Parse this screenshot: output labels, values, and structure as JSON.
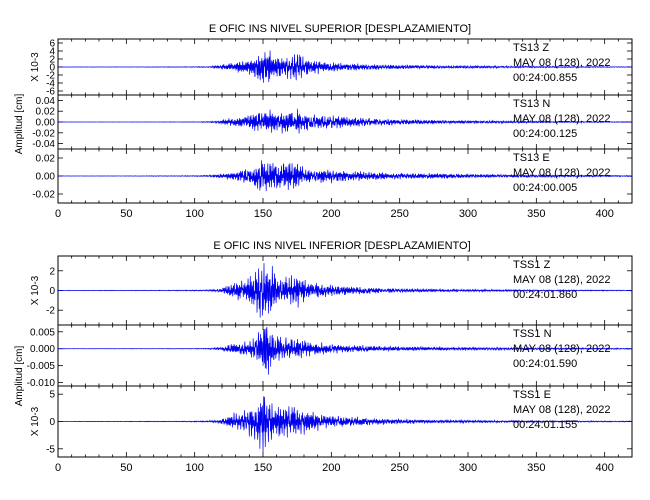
{
  "chart_data": [
    {
      "type": "line",
      "title": "E OFIC INS NIVEL SUPERIOR [DESPLAZAMIENTO]",
      "xlabel": "",
      "xlim": [
        0,
        420
      ],
      "x_ticks": [
        "0",
        "50",
        "100",
        "150",
        "200",
        "250",
        "300",
        "350",
        "400"
      ],
      "shared_ylabel": "Amplitud [cm]",
      "panels": [
        {
          "name": "TS13 Z",
          "station": "TS13",
          "component": "Z",
          "date": "MAY 08 (128), 2022",
          "time": "00:24:00.855",
          "ylabel": "X 10-3",
          "ylim": [
            -7,
            7
          ],
          "y_ticks": [
            6,
            4,
            2,
            0,
            -2,
            -4,
            -6
          ],
          "y_tick_labels": [
            "6",
            "4",
            "2",
            "0",
            "-2",
            "-4",
            "-6"
          ],
          "x": [
            0,
            20,
            40,
            60,
            80,
            100,
            110,
            115,
            120,
            125,
            130,
            135,
            140,
            145,
            150,
            152,
            155,
            158,
            160,
            165,
            170,
            175,
            180,
            185,
            190,
            195,
            200,
            205,
            210,
            220,
            230,
            240,
            250,
            260,
            270,
            280,
            290,
            300,
            310,
            320,
            330,
            340,
            350,
            360,
            370,
            380,
            390,
            400,
            410,
            420
          ],
          "envelope": [
            0.04,
            0.05,
            0.05,
            0.06,
            0.08,
            0.1,
            0.15,
            0.3,
            0.6,
            1.0,
            1.3,
            1.6,
            1.8,
            3.0,
            4.5,
            6.2,
            5.0,
            3.5,
            2.8,
            2.7,
            3.0,
            3.6,
            2.6,
            1.8,
            1.6,
            1.4,
            1.3,
            1.1,
            1.0,
            0.85,
            0.7,
            0.6,
            0.55,
            0.5,
            0.45,
            0.4,
            0.35,
            0.32,
            0.3,
            0.28,
            0.25,
            0.22,
            0.2,
            0.18,
            0.17,
            0.16,
            0.14,
            0.12,
            0.1,
            0.08
          ]
        },
        {
          "name": "TS13 N",
          "station": "TS13",
          "component": "N",
          "date": "MAY 08 (128), 2022",
          "time": "00:24:00.125",
          "ylabel": "Amplitud [cm]",
          "ylim": [
            -0.05,
            0.05
          ],
          "y_ticks": [
            0.04,
            0.02,
            0.0,
            -0.02,
            -0.04
          ],
          "y_tick_labels": [
            "0.04",
            "0.02",
            "0.00",
            "-0.02",
            "-0.04"
          ],
          "x": [
            0,
            20,
            40,
            60,
            80,
            100,
            110,
            115,
            120,
            125,
            130,
            135,
            140,
            145,
            150,
            152,
            155,
            158,
            160,
            165,
            170,
            175,
            180,
            185,
            190,
            195,
            200,
            205,
            210,
            220,
            230,
            240,
            250,
            260,
            270,
            280,
            290,
            300,
            310,
            320,
            330,
            340,
            350,
            360,
            370,
            380,
            390,
            400,
            410,
            420
          ],
          "envelope": [
            0.0002,
            0.0002,
            0.0002,
            0.0003,
            0.0004,
            0.0005,
            0.001,
            0.002,
            0.004,
            0.006,
            0.009,
            0.011,
            0.013,
            0.018,
            0.022,
            0.028,
            0.022,
            0.019,
            0.018,
            0.02,
            0.021,
            0.022,
            0.018,
            0.015,
            0.014,
            0.013,
            0.013,
            0.012,
            0.011,
            0.009,
            0.0075,
            0.0062,
            0.0055,
            0.0048,
            0.0042,
            0.0036,
            0.003,
            0.0028,
            0.0025,
            0.0022,
            0.002,
            0.0018,
            0.0016,
            0.0014,
            0.0013,
            0.0012,
            0.001,
            0.0009,
            0.0008,
            0.0007
          ]
        },
        {
          "name": "TS13 E",
          "station": "TS13",
          "component": "E",
          "date": "MAY 08 (128), 2022",
          "time": "00:24:00.005",
          "ylabel": "",
          "ylim": [
            -0.03,
            0.03
          ],
          "y_ticks": [
            0.02,
            0.0,
            -0.02
          ],
          "y_tick_labels": [
            "0.02",
            "0.00",
            "-0.02"
          ],
          "x": [
            0,
            20,
            40,
            60,
            80,
            100,
            110,
            115,
            120,
            125,
            130,
            135,
            140,
            145,
            150,
            152,
            155,
            158,
            160,
            165,
            170,
            175,
            180,
            185,
            190,
            195,
            200,
            205,
            210,
            220,
            230,
            240,
            250,
            260,
            270,
            280,
            290,
            300,
            310,
            320,
            330,
            340,
            350,
            360,
            370,
            380,
            390,
            400,
            410,
            420
          ],
          "envelope": [
            0.0002,
            0.0002,
            0.0002,
            0.0003,
            0.0004,
            0.0005,
            0.0009,
            0.0015,
            0.0025,
            0.004,
            0.006,
            0.008,
            0.01,
            0.015,
            0.019,
            0.02,
            0.018,
            0.016,
            0.015,
            0.016,
            0.017,
            0.016,
            0.01,
            0.008,
            0.007,
            0.009,
            0.008,
            0.0065,
            0.006,
            0.005,
            0.0045,
            0.004,
            0.0035,
            0.0033,
            0.003,
            0.0028,
            0.0025,
            0.0023,
            0.002,
            0.0018,
            0.0016,
            0.0015,
            0.0014,
            0.0012,
            0.0011,
            0.001,
            0.0009,
            0.0008,
            0.0007,
            0.0006
          ]
        }
      ]
    },
    {
      "type": "line",
      "title": "E OFIC INS NIVEL INFERIOR [DESPLAZAMIENTO]",
      "xlabel": "",
      "xlim": [
        0,
        420
      ],
      "x_ticks": [
        "0",
        "50",
        "100",
        "150",
        "200",
        "250",
        "300",
        "350",
        "400"
      ],
      "shared_ylabel": "Amplitud [cm]",
      "panels": [
        {
          "name": "TSS1 Z",
          "station": "TSS1",
          "component": "Z",
          "date": "MAY 08 (128), 2022",
          "time": "00:24:01.860",
          "ylabel": "X 10-3",
          "ylim": [
            -3.5,
            3.5
          ],
          "y_ticks": [
            2,
            0,
            -2
          ],
          "y_tick_labels": [
            "2",
            "0",
            "-2"
          ],
          "x": [
            0,
            20,
            40,
            60,
            80,
            100,
            110,
            115,
            120,
            125,
            130,
            135,
            140,
            145,
            150,
            152,
            155,
            158,
            160,
            165,
            170,
            175,
            180,
            185,
            190,
            195,
            200,
            205,
            210,
            220,
            230,
            240,
            250,
            260,
            270,
            280,
            290,
            300,
            310,
            320,
            330,
            340,
            350,
            360,
            370,
            380,
            390,
            400,
            410,
            420
          ],
          "envelope": [
            0.02,
            0.025,
            0.03,
            0.03,
            0.04,
            0.05,
            0.08,
            0.12,
            0.25,
            0.6,
            0.9,
            1.1,
            1.3,
            2.2,
            3.0,
            3.3,
            2.6,
            2.1,
            1.8,
            1.6,
            1.5,
            1.7,
            1.2,
            0.9,
            0.8,
            0.7,
            0.6,
            0.55,
            0.5,
            0.4,
            0.32,
            0.26,
            0.22,
            0.2,
            0.17,
            0.15,
            0.13,
            0.12,
            0.11,
            0.1,
            0.09,
            0.08,
            0.075,
            0.07,
            0.065,
            0.06,
            0.055,
            0.05,
            0.045,
            0.04
          ]
        },
        {
          "name": "TSS1 N",
          "station": "TSS1",
          "component": "N",
          "date": "MAY 08 (128), 2022",
          "time": "00:24:01.590",
          "ylabel": "Amplitud [cm]",
          "ylim": [
            -0.011,
            0.007
          ],
          "y_ticks": [
            0.005,
            0.0,
            -0.005,
            -0.01
          ],
          "y_tick_labels": [
            "0.005",
            "0.000",
            "-0.005",
            "-0.010"
          ],
          "x": [
            0,
            20,
            40,
            60,
            80,
            100,
            110,
            115,
            120,
            125,
            130,
            135,
            140,
            145,
            150,
            152,
            155,
            158,
            160,
            165,
            170,
            175,
            180,
            185,
            190,
            195,
            200,
            205,
            210,
            220,
            230,
            240,
            250,
            260,
            270,
            280,
            290,
            300,
            310,
            320,
            330,
            340,
            350,
            360,
            370,
            380,
            390,
            400,
            410,
            420
          ],
          "envelope": [
            4e-05,
            4e-05,
            5e-05,
            5e-05,
            6e-05,
            8e-05,
            0.00015,
            0.0003,
            0.0006,
            0.0012,
            0.0016,
            0.002,
            0.0024,
            0.004,
            0.0075,
            0.009,
            0.006,
            0.0045,
            0.004,
            0.0035,
            0.0032,
            0.0034,
            0.0026,
            0.002,
            0.0018,
            0.0016,
            0.0014,
            0.0013,
            0.0012,
            0.001,
            0.0009,
            0.0008,
            0.0007,
            0.00065,
            0.0006,
            0.00055,
            0.0005,
            0.00045,
            0.0004,
            0.00038,
            0.00035,
            0.00032,
            0.0003,
            0.00028,
            0.00026,
            0.00024,
            0.00022,
            0.0002,
            0.00018,
            0.00016
          ]
        },
        {
          "name": "TSS1 E",
          "station": "TSS1",
          "component": "E",
          "date": "MAY 08 (128), 2022",
          "time": "00:24:01.155",
          "ylabel": "X 10-3",
          "ylim": [
            -6.5,
            6.5
          ],
          "y_ticks": [
            5,
            0,
            -5
          ],
          "y_tick_labels": [
            "5",
            "0",
            "-5"
          ],
          "x": [
            0,
            20,
            40,
            60,
            80,
            100,
            110,
            115,
            120,
            125,
            130,
            135,
            140,
            145,
            150,
            152,
            155,
            158,
            160,
            165,
            170,
            175,
            180,
            185,
            190,
            195,
            200,
            205,
            210,
            220,
            230,
            240,
            250,
            260,
            270,
            280,
            290,
            300,
            310,
            320,
            330,
            340,
            350,
            360,
            370,
            380,
            390,
            400,
            410,
            420
          ],
          "envelope": [
            0.04,
            0.05,
            0.05,
            0.06,
            0.07,
            0.09,
            0.15,
            0.25,
            0.5,
            1.0,
            1.6,
            2.2,
            2.8,
            4.0,
            5.8,
            5.2,
            4.0,
            3.4,
            3.0,
            3.0,
            3.2,
            2.8,
            2.2,
            1.8,
            1.6,
            1.4,
            1.2,
            1.1,
            1.0,
            0.8,
            0.65,
            0.55,
            0.45,
            0.4,
            0.35,
            0.3,
            0.27,
            0.25,
            0.22,
            0.2,
            0.18,
            0.17,
            0.16,
            0.15,
            0.14,
            0.13,
            0.12,
            0.11,
            0.1,
            0.09
          ]
        }
      ]
    }
  ],
  "colors": {
    "trace": "#0000ee",
    "axes": "#000000",
    "background": "#ffffff"
  }
}
